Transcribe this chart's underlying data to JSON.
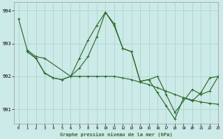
{
  "title": "Graphe pression niveau de la mer (hPa)",
  "bg_color": "#cceae7",
  "grid_color": "#b0d8d4",
  "line_color": "#2d6b2d",
  "xlim": [
    -0.5,
    23
  ],
  "ylim": [
    990.55,
    994.25
  ],
  "yticks": [
    991,
    992,
    993,
    994
  ],
  "xticks": [
    0,
    1,
    2,
    3,
    4,
    5,
    6,
    7,
    8,
    9,
    10,
    11,
    12,
    13,
    14,
    15,
    16,
    17,
    18,
    19,
    20,
    21,
    22,
    23
  ],
  "line1_x": [
    0,
    1,
    2,
    3,
    6,
    7,
    8,
    9,
    10,
    11,
    12,
    13,
    14,
    15,
    16,
    17,
    18,
    20,
    21,
    22,
    23
  ],
  "line1_y": [
    993.75,
    992.8,
    992.6,
    992.55,
    992.0,
    992.55,
    993.1,
    993.55,
    993.95,
    993.6,
    992.85,
    992.75,
    991.85,
    991.9,
    992.0,
    991.45,
    990.9,
    991.6,
    991.45,
    991.55,
    992.0
  ],
  "line2_x": [
    1,
    2,
    3,
    4,
    5,
    6,
    7,
    8,
    9,
    10,
    11,
    12,
    13,
    14,
    15,
    16,
    17,
    18,
    19,
    20,
    21,
    22,
    23
  ],
  "line2_y": [
    992.75,
    992.55,
    992.1,
    991.95,
    991.9,
    992.0,
    992.0,
    992.0,
    992.0,
    992.0,
    992.0,
    991.95,
    991.9,
    991.82,
    991.75,
    991.65,
    991.55,
    991.45,
    991.35,
    991.28,
    991.22,
    991.18,
    991.15
  ],
  "line3_x": [
    1,
    2,
    3,
    4,
    5,
    6,
    7,
    8,
    9,
    10,
    11,
    12,
    13,
    14,
    15,
    16,
    17,
    18,
    19,
    20,
    21,
    22,
    23
  ],
  "line3_y": [
    992.75,
    992.55,
    992.1,
    991.95,
    991.9,
    992.0,
    992.25,
    992.6,
    993.2,
    993.95,
    993.55,
    992.85,
    992.75,
    991.85,
    991.9,
    991.5,
    991.1,
    990.7,
    991.35,
    991.25,
    991.5,
    991.95,
    992.0
  ]
}
